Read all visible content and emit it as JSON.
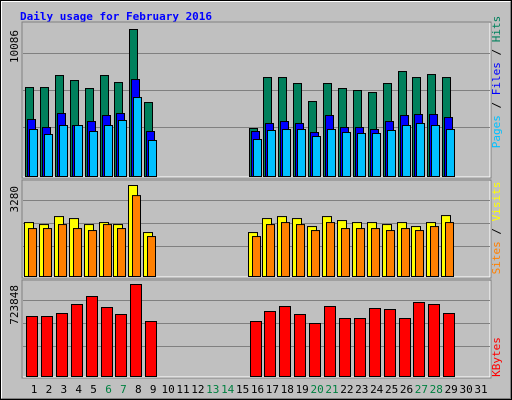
{
  "chart_data": {
    "type": "bar",
    "title": "Daily usage for February 2016",
    "legend_separator": " / ",
    "categories": [
      "1",
      "2",
      "3",
      "4",
      "5",
      "6",
      "7",
      "8",
      "9",
      "10",
      "11",
      "12",
      "13",
      "14",
      "15",
      "16",
      "17",
      "18",
      "19",
      "20",
      "21",
      "22",
      "23",
      "24",
      "25",
      "26",
      "27",
      "28",
      "29",
      "30",
      "31"
    ],
    "category_colors": [
      "#000000",
      "#000000",
      "#000000",
      "#000000",
      "#000000",
      "#008040",
      "#008040",
      "#000000",
      "#000000",
      "#000000",
      "#000000",
      "#000000",
      "#008040",
      "#008040",
      "#000000",
      "#000000",
      "#000000",
      "#000000",
      "#000000",
      "#008040",
      "#008040",
      "#000000",
      "#000000",
      "#000000",
      "#000000",
      "#000000",
      "#008040",
      "#008040",
      "#000000",
      "#000000",
      "#000000"
    ],
    "panels": [
      {
        "ylim": [
          0,
          10086
        ],
        "yticks": [
          10086
        ],
        "series": [
          {
            "name": "Hits",
            "color": "#00805c",
            "values": [
              6105,
              6105,
              6929,
              6586,
              6037,
              6929,
              6448,
              10086,
              5076,
              null,
              null,
              null,
              null,
              null,
              null,
              3293,
              6791,
              6791,
              6380,
              5145,
              6380,
              6037,
              5900,
              5762,
              6380,
              7203,
              6791,
              6997,
              6791,
              null,
              null
            ]
          },
          {
            "name": "Files",
            "color": "#0000ff",
            "values": [
              3910,
              3361,
              4322,
              3499,
              3773,
              4185,
              4322,
              6654,
              3087,
              null,
              null,
              null,
              null,
              null,
              null,
              3087,
              3636,
              3773,
              3636,
              3018,
              4185,
              3361,
              3361,
              3224,
              3773,
              4185,
              4253,
              4253,
              4047,
              null,
              null
            ]
          },
          {
            "name": "Pages",
            "color": "#00c0ff",
            "values": [
              3224,
              2881,
              3499,
              3499,
              3087,
              3499,
              3842,
              5419,
              2470,
              null,
              null,
              null,
              null,
              null,
              null,
              2538,
              3156,
              3224,
              3224,
              2744,
              3224,
              3018,
              2950,
              2950,
              3156,
              3499,
              3636,
              3499,
              3224,
              null,
              null
            ]
          }
        ]
      },
      {
        "ylim": [
          0,
          3280
        ],
        "yticks": [
          3280
        ],
        "series": [
          {
            "name": "Visits",
            "color": "#ffff00",
            "values": [
              1944,
              1872,
              2160,
              2088,
              1872,
              1944,
              1872,
              3280,
              1584,
              null,
              null,
              null,
              null,
              null,
              null,
              1584,
              2088,
              2160,
              2088,
              1800,
              2160,
              2016,
              1944,
              1944,
              1872,
              1944,
              1800,
              1944,
              2196,
              null,
              null
            ]
          },
          {
            "name": "Sites",
            "color": "#ff8000",
            "values": [
              1728,
              1728,
              1872,
              1728,
              1656,
              1872,
              1728,
              2916,
              1440,
              null,
              null,
              null,
              null,
              null,
              null,
              1440,
              1872,
              1944,
              1872,
              1656,
              1944,
              1728,
              1728,
              1728,
              1656,
              1728,
              1656,
              1800,
              1944,
              null,
              null
            ]
          }
        ]
      },
      {
        "ylim": [
          0,
          723848
        ],
        "yticks": [
          723848
        ],
        "series": [
          {
            "name": "KBytes",
            "color": "#ff0000",
            "values": [
              472080,
              472080,
              495684,
              566496,
              629440,
              542892,
              487816,
              723848,
              432740,
              null,
              null,
              null,
              null,
              null,
              null,
              432740,
              511420,
              550760,
              487816,
              417004,
              550760,
              456344,
              456344,
              535024,
              527156,
              456344,
              582232,
              566496,
              495684,
              null,
              null
            ]
          }
        ]
      }
    ]
  }
}
